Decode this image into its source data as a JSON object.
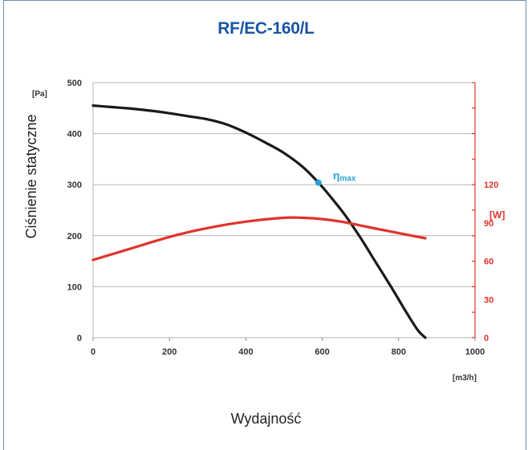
{
  "chart_data": {
    "type": "line",
    "title": "RF/EC-160/L",
    "xlabel": "Wydajność",
    "ylabel": "Ciśnienie statyczne",
    "x_unit": "[m3/h]",
    "y_unit": "[Pa]",
    "y2_unit": "[W]",
    "xlim": [
      0,
      1000
    ],
    "ylim": [
      0,
      500
    ],
    "y2lim": [
      0,
      200
    ],
    "x_ticks": [
      0,
      200,
      400,
      600,
      800,
      1000
    ],
    "y_ticks": [
      0,
      100,
      200,
      300,
      400,
      500
    ],
    "y2_ticks": [
      0,
      30,
      60,
      90,
      120
    ],
    "grid": true,
    "annotation": {
      "label": "ηmax",
      "x": 590,
      "y": 304
    },
    "series": [
      {
        "axis": "left",
        "color": "#1a1a1a",
        "x": [
          0,
          50,
          100,
          150,
          200,
          250,
          300,
          350,
          400,
          450,
          500,
          550,
          590,
          620,
          660,
          700,
          740,
          780,
          820,
          850,
          870
        ],
        "y": [
          455,
          452,
          449,
          445,
          440,
          434,
          428,
          418,
          402,
          383,
          362,
          334,
          304,
          278,
          240,
          196,
          148,
          100,
          50,
          15,
          0
        ]
      },
      {
        "axis": "right",
        "color": "#e0332b",
        "x": [
          0,
          100,
          200,
          300,
          400,
          500,
          550,
          600,
          650,
          700,
          750,
          800,
          870
        ],
        "y": [
          61,
          70,
          79,
          86,
          91,
          94,
          94,
          93,
          91,
          88,
          85,
          82,
          78
        ]
      }
    ]
  }
}
